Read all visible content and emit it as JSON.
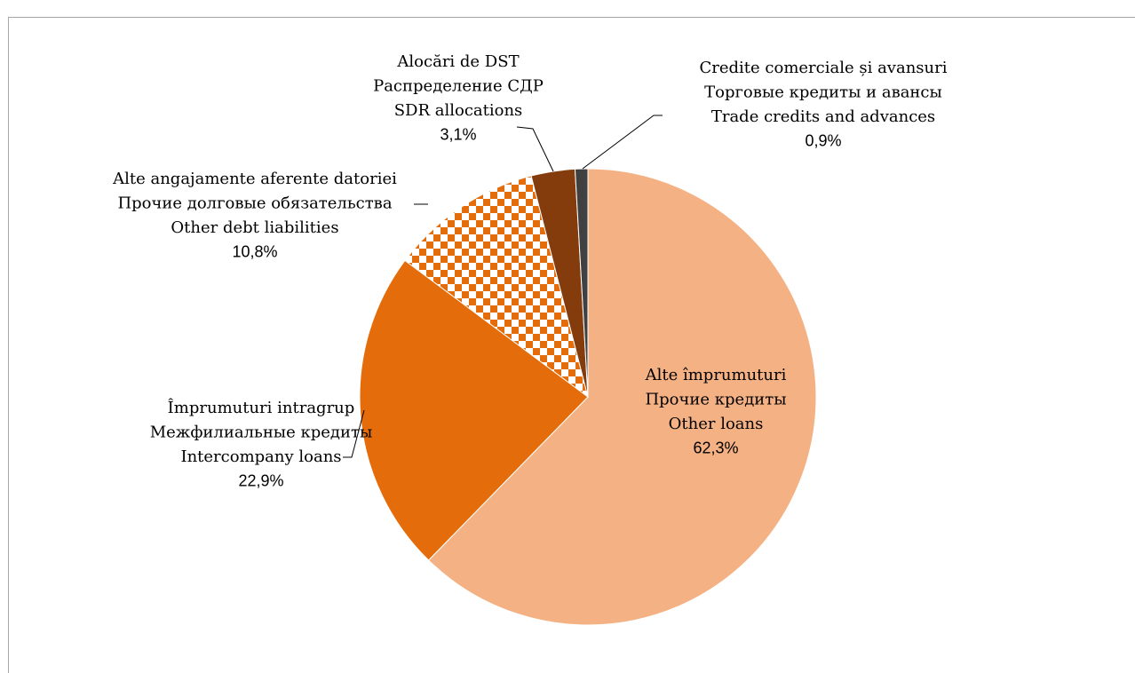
{
  "chart_data": {
    "type": "pie",
    "categories": [
      [
        "Alte împrumuturi",
        "Прочие кредиты",
        "Other loans"
      ],
      [
        "Împrumuturi intragrup",
        "Межфилиальные кредиты",
        "Intercompany loans"
      ],
      [
        "Alte angajamente aferente datoriei",
        "Прочие долговые обязательства",
        "Other debt liabilities"
      ],
      [
        "Alocări de DST",
        "Распределение СДР",
        "SDR allocations"
      ],
      [
        "Credite comerciale și avansuri",
        "Торговые кредиты и авансы",
        "Trade credits and advances"
      ]
    ],
    "values": [
      62.3,
      22.9,
      10.8,
      3.1,
      0.9
    ],
    "value_labels": [
      "62,3%",
      "22,9%",
      "10,8%",
      "3,1%",
      "0,9%"
    ],
    "colors": [
      "#f4b183",
      "#e46c0a",
      "#e46c0a",
      "#843c0c",
      "#404040"
    ],
    "patterns": [
      null,
      null,
      "checker",
      null,
      null
    ],
    "start_angle": 0,
    "direction": "clockwise"
  }
}
